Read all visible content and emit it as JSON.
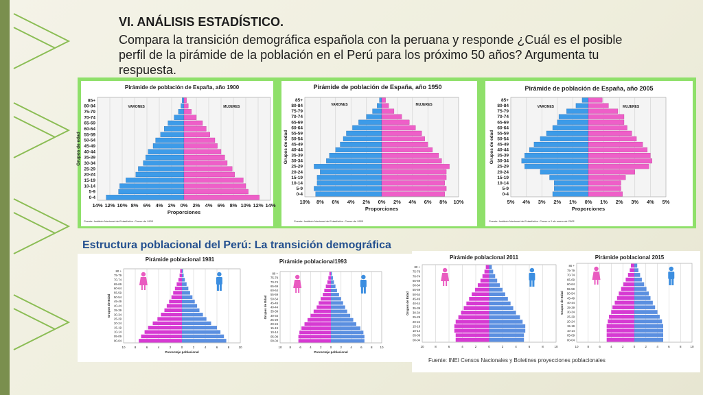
{
  "slide": {
    "heading": "VI. ANÁLISIS ESTADÍSTICO.",
    "question": "Compara la transición demográfica española con la peruana y responde ¿Cuál es el posible perfil de la pirámide de la población en el Perú para los próximo 50 años? Argumenta tu respuesta.",
    "peru_title": "Estructura poblacional del Perú: La transición demográfica",
    "peru_source": "Fuente: INEI  Censos Nacionales y Boletines proyecciones poblacionales"
  },
  "colors": {
    "male": "#3d9be8",
    "female": "#ee5fc8",
    "peru_female": "#d63ad2",
    "peru_male": "#5b8fe0",
    "frame": "#8fe06a",
    "accent": "#7a8f4e"
  },
  "chart_data": [
    {
      "type": "bar",
      "title": "Pirámide de población de España, año 1900",
      "xlabel": "Proporciones",
      "ylabel": "Grupos de edad",
      "left_label": "VARONES",
      "right_label": "MUJERES",
      "source": "Fuente: Instituto Nacional de Estadística. Censo de 1900",
      "categories": [
        "0-4",
        "5-9",
        "10-14",
        "15-19",
        "20-24",
        "25-29",
        "30-34",
        "35-39",
        "40-44",
        "45-49",
        "50-54",
        "55-59",
        "60-64",
        "65-69",
        "70-74",
        "75-79",
        "80-84",
        "85+"
      ],
      "xticks": [
        "14%",
        "12%",
        "10%",
        "8%",
        "6%",
        "4%",
        "2%",
        "0%",
        "2%",
        "4%",
        "6%",
        "8%",
        "10%",
        "12%",
        "14%"
      ],
      "xmax": 14,
      "series": [
        {
          "name": "VARONES",
          "values": [
            12.6,
            10.6,
            10.4,
            9.4,
            7.8,
            7.4,
            6.6,
            6.2,
            5.8,
            5.0,
            4.6,
            3.8,
            3.2,
            2.6,
            1.6,
            0.9,
            0.5,
            0.3
          ]
        },
        {
          "name": "MUJERES",
          "values": [
            12.2,
            10.4,
            10.0,
            9.6,
            8.2,
            7.8,
            7.0,
            6.6,
            6.0,
            5.4,
            5.0,
            4.2,
            3.6,
            3.0,
            2.0,
            1.2,
            0.7,
            0.4
          ]
        }
      ]
    },
    {
      "type": "bar",
      "title": "Pirámide de población de España, año 1950",
      "xlabel": "Proporciones",
      "ylabel": "Grupos de edad",
      "left_label": "VARONES",
      "right_label": "MUJERES",
      "source": "Fuente: Instituto Nacional de Estadística. Censo de 1950",
      "categories": [
        "0-4",
        "5-9",
        "10-14",
        "15-19",
        "20-24",
        "25-29",
        "30-34",
        "35-39",
        "40-44",
        "45-49",
        "50-54",
        "55-59",
        "60-64",
        "65-69",
        "70-74",
        "75-79",
        "80-84",
        "85+"
      ],
      "xticks": [
        "10%",
        "8%",
        "6%",
        "4%",
        "2%",
        "0%",
        "2%",
        "4%",
        "6%",
        "8%",
        "10%"
      ],
      "xmax": 10,
      "series": [
        {
          "name": "VARONES",
          "values": [
            8.6,
            8.8,
            8.4,
            8.4,
            8.0,
            8.8,
            7.2,
            6.8,
            6.0,
            5.4,
            5.0,
            4.6,
            3.8,
            3.0,
            2.0,
            1.2,
            0.6,
            0.3
          ]
        },
        {
          "name": "MUJERES",
          "values": [
            8.2,
            8.4,
            8.2,
            8.4,
            8.4,
            8.8,
            7.8,
            7.4,
            6.6,
            6.0,
            5.6,
            5.2,
            4.4,
            3.6,
            2.6,
            1.6,
            0.9,
            0.5
          ]
        }
      ]
    },
    {
      "type": "bar",
      "title": "Pirámide de población de España, año 2005",
      "xlabel": "Proporciones",
      "ylabel": "Grupos de edad",
      "left_label": "VARONES",
      "right_label": "MUJERES",
      "source": "Fuente: Instituto Nacional de Estadística. Censo a 1 de enero de 2005",
      "categories": [
        "0-4",
        "5-9",
        "10-14",
        "15-19",
        "20-24",
        "25-29",
        "30-34",
        "35-39",
        "40-44",
        "45-49",
        "50-54",
        "55-59",
        "60-64",
        "65-69",
        "70-74",
        "75-79",
        "80-84",
        "85+"
      ],
      "xticks": [
        "5%",
        "4%",
        "3%",
        "2%",
        "1%",
        "0%",
        "1%",
        "2%",
        "3%",
        "4%",
        "5%"
      ],
      "xmax": 5,
      "series": [
        {
          "name": "VARONES",
          "values": [
            2.3,
            2.2,
            2.2,
            2.5,
            3.1,
            4.1,
            4.3,
            4.1,
            3.8,
            3.5,
            3.1,
            2.7,
            2.3,
            2.0,
            1.9,
            1.4,
            0.8,
            0.4
          ]
        },
        {
          "name": "MUJERES",
          "values": [
            2.2,
            2.1,
            2.1,
            2.4,
            3.0,
            3.9,
            4.1,
            4.0,
            3.8,
            3.5,
            3.1,
            2.8,
            2.5,
            2.3,
            2.3,
            1.9,
            1.3,
            0.9
          ]
        }
      ]
    },
    {
      "type": "bar",
      "title": "Pirámide poblacional 1981",
      "xlabel": "Porcentaje poblacional",
      "ylabel": "Grupos de Edad",
      "categories": [
        "00-04",
        "05-09",
        "10-14",
        "15-19",
        "20-24",
        "25-29",
        "30-34",
        "35-39",
        "40-44",
        "45-49",
        "50-54",
        "55-59",
        "60-64",
        "65-69",
        "70-74",
        "75-79",
        "80 +"
      ],
      "xticks": [
        "10",
        "8",
        "6",
        "4",
        "2",
        "0",
        "2",
        "4",
        "6",
        "8",
        "10"
      ],
      "xmax": 10,
      "series": [
        {
          "name": "Mujeres",
          "values": [
            7.4,
            7.0,
            6.4,
            5.8,
            5.0,
            4.2,
            3.6,
            3.0,
            2.6,
            2.2,
            1.8,
            1.5,
            1.2,
            0.9,
            0.6,
            0.4,
            0.3
          ]
        },
        {
          "name": "Hombres",
          "values": [
            7.6,
            7.2,
            6.6,
            6.0,
            5.0,
            4.2,
            3.6,
            3.0,
            2.6,
            2.2,
            1.8,
            1.4,
            1.1,
            0.8,
            0.5,
            0.3,
            0.2
          ]
        }
      ]
    },
    {
      "type": "bar",
      "title": "Pirámide poblacional1993",
      "xlabel": "Porcentaje poblacional",
      "ylabel": "Grupos de Edad",
      "categories": [
        "00-04",
        "05-09",
        "10-14",
        "15-19",
        "20-24",
        "25-29",
        "30-34",
        "35-39",
        "40-44",
        "45-49",
        "50-54",
        "55-59",
        "60-64",
        "65-69",
        "70-74",
        "75-79",
        "80 +"
      ],
      "xticks": [
        "10",
        "8",
        "6",
        "4",
        "2",
        "0",
        "2",
        "4",
        "6",
        "8",
        "10"
      ],
      "xmax": 10,
      "series": [
        {
          "name": "Mujeres",
          "values": [
            6.4,
            6.4,
            6.2,
            5.8,
            5.2,
            4.6,
            4.0,
            3.4,
            2.8,
            2.4,
            2.0,
            1.6,
            1.3,
            1.0,
            0.7,
            0.5,
            0.3
          ]
        },
        {
          "name": "Hombres",
          "values": [
            6.6,
            6.6,
            6.4,
            5.8,
            5.0,
            4.4,
            3.8,
            3.2,
            2.8,
            2.4,
            2.0,
            1.6,
            1.2,
            0.9,
            0.6,
            0.4,
            0.2
          ]
        }
      ]
    },
    {
      "type": "bar",
      "title": "Pirámide poblacional 2011",
      "ylabel": "Grupos de Edad",
      "categories": [
        "00-04",
        "05-09",
        "10-14",
        "15-19",
        "20-24",
        "25-29",
        "30-34",
        "35-39",
        "40-44",
        "45-49",
        "50-54",
        "55-59",
        "60-64",
        "65-69",
        "70-74",
        "75-79",
        "80 +"
      ],
      "xticks": [
        "10",
        "8",
        "6",
        "4",
        "2",
        "0",
        "2",
        "4",
        "6",
        "8",
        "10"
      ],
      "xmax": 10,
      "series": [
        {
          "name": "Mujeres",
          "values": [
            5.0,
            5.0,
            5.2,
            5.2,
            5.0,
            4.6,
            4.2,
            3.8,
            3.4,
            3.0,
            2.6,
            2.1,
            1.7,
            1.3,
            1.0,
            0.7,
            0.5
          ]
        },
        {
          "name": "Hombres",
          "values": [
            5.2,
            5.2,
            5.4,
            5.4,
            5.0,
            4.6,
            4.0,
            3.6,
            3.2,
            2.8,
            2.4,
            2.0,
            1.6,
            1.2,
            0.9,
            0.6,
            0.4
          ]
        }
      ]
    },
    {
      "type": "bar",
      "title": "Pirámide poblacional 2015",
      "ylabel": "Grupos de Edad",
      "categories": [
        "00-04",
        "05-09",
        "10-14",
        "15-19",
        "20-24",
        "25-29",
        "30-34",
        "35-39",
        "40-44",
        "45-49",
        "50-54",
        "55-59",
        "60-64",
        "65-69",
        "70-74",
        "75-79",
        "80 +"
      ],
      "xticks": [
        "10",
        "8",
        "6",
        "4",
        "2",
        "0",
        "2",
        "4",
        "6",
        "8",
        "10"
      ],
      "xmax": 10,
      "series": [
        {
          "name": "Mujeres",
          "values": [
            4.8,
            4.8,
            4.8,
            4.8,
            4.6,
            4.4,
            4.0,
            3.8,
            3.4,
            3.0,
            2.7,
            2.3,
            1.9,
            1.5,
            1.1,
            0.8,
            0.6
          ]
        },
        {
          "name": "Hombres",
          "values": [
            5.0,
            5.0,
            5.0,
            5.0,
            4.8,
            4.4,
            4.0,
            3.6,
            3.2,
            2.8,
            2.5,
            2.1,
            1.7,
            1.3,
            1.0,
            0.7,
            0.5
          ]
        }
      ]
    }
  ]
}
